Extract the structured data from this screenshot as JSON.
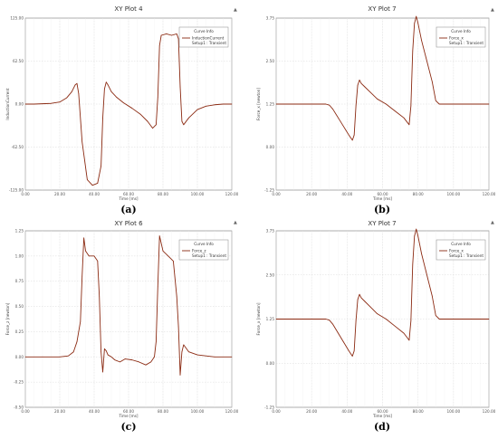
{
  "panel_labels": [
    "(a)",
    "(b)",
    "(c)",
    "(d)"
  ],
  "colors": {
    "curve": "#8b2a12",
    "grid": "#d0d0d0",
    "frame": "#777777",
    "background": "#ffffff",
    "legend_border": "#888888"
  },
  "chart_data": [
    {
      "type": "line",
      "title": "XY Plot 4",
      "xlabel": "Time [ms]",
      "ylabel": "InductionCurrent",
      "xlim": [
        0,
        120
      ],
      "ylim": [
        -125,
        125
      ],
      "xticks": [
        "0.00",
        "20.00",
        "40.00",
        "60.00",
        "80.00",
        "100.00",
        "120.00"
      ],
      "yticks": [
        "125.00",
        "62.50",
        "0.00",
        "-62.50",
        "-125.00"
      ],
      "ytick_values": [
        125,
        62.5,
        0,
        -62.5,
        -125
      ],
      "legend": {
        "title": "Curve Info",
        "entry": "InductionCurrent",
        "setup": "Setup1 : Transient"
      },
      "series": [
        {
          "name": "InductionCurrent",
          "x": [
            0,
            5,
            10,
            15,
            20,
            24,
            27,
            29,
            30,
            31,
            33,
            36,
            39,
            42,
            44,
            45,
            46,
            47,
            48,
            50,
            53,
            57,
            62,
            67,
            71,
            74,
            76,
            77,
            78,
            79,
            82,
            85,
            88,
            89,
            90,
            91,
            92,
            95,
            100,
            105,
            110,
            115,
            120
          ],
          "y": [
            0,
            0,
            0.5,
            1,
            3,
            9,
            18,
            28,
            30,
            15,
            -55,
            -110,
            -118,
            -115,
            -90,
            -20,
            22,
            32,
            28,
            18,
            10,
            2,
            -6,
            -15,
            -25,
            -35,
            -30,
            10,
            85,
            100,
            102,
            100,
            102,
            95,
            25,
            -25,
            -30,
            -20,
            -8,
            -3,
            -1,
            0,
            0
          ]
        }
      ]
    },
    {
      "type": "line",
      "title": "XY Plot 7",
      "xlabel": "Time [ms]",
      "ylabel": "Force_x [newton]",
      "xlim": [
        0,
        120
      ],
      "ylim": [
        -1.25,
        3.75
      ],
      "xticks": [
        "0.00",
        "20.00",
        "40.00",
        "60.00",
        "80.00",
        "100.00",
        "120.00"
      ],
      "yticks": [
        "3.75",
        "2.50",
        "1.25",
        "0.00",
        "-1.25"
      ],
      "ytick_values": [
        3.75,
        2.5,
        1.25,
        0,
        -1.25
      ],
      "legend": {
        "title": "Curve Info",
        "entry": "Force_x",
        "setup": "Setup1 : Transient"
      },
      "series": [
        {
          "name": "Force_x",
          "x": [
            0,
            10,
            20,
            28,
            30,
            32,
            35,
            38,
            41,
            43,
            44,
            45,
            46,
            47,
            48,
            50,
            53,
            57,
            62,
            67,
            72,
            75,
            76,
            77,
            78,
            79,
            80,
            82,
            85,
            88,
            90,
            92,
            95,
            100,
            110,
            120
          ],
          "y": [
            1.25,
            1.25,
            1.25,
            1.25,
            1.22,
            1.1,
            0.85,
            0.6,
            0.35,
            0.2,
            0.35,
            1.2,
            1.8,
            1.95,
            1.85,
            1.75,
            1.6,
            1.4,
            1.25,
            1.05,
            0.85,
            0.65,
            1.2,
            2.8,
            3.6,
            3.8,
            3.6,
            3.1,
            2.5,
            1.9,
            1.35,
            1.25,
            1.25,
            1.25,
            1.25,
            1.25
          ]
        }
      ]
    },
    {
      "type": "line",
      "title": "XY Plot 6",
      "xlabel": "Time [ms]",
      "ylabel": "Force_z [newton]",
      "xlim": [
        0,
        120
      ],
      "ylim": [
        -0.5,
        1.25
      ],
      "xticks": [
        "0.00",
        "20.00",
        "40.00",
        "60.00",
        "80.00",
        "100.00",
        "120.00"
      ],
      "yticks": [
        "1.25",
        "1.00",
        "0.75",
        "0.50",
        "0.25",
        "0.00",
        "-0.25",
        "-0.50"
      ],
      "ytick_values": [
        1.25,
        1.0,
        0.75,
        0.5,
        0.25,
        0.0,
        -0.25,
        -0.5
      ],
      "legend": {
        "title": "Curve Info",
        "entry": "Force_z",
        "setup": "Setup1 : Transient"
      },
      "series": [
        {
          "name": "Force_z",
          "x": [
            0,
            10,
            20,
            25,
            28,
            30,
            32,
            33,
            34,
            35,
            37,
            40,
            42,
            43,
            44,
            45,
            46,
            47,
            48,
            50,
            52,
            55,
            58,
            62,
            66,
            70,
            73,
            75,
            76,
            77,
            78,
            80,
            83,
            86,
            88,
            89,
            90,
            91,
            92,
            95,
            100,
            110,
            120
          ],
          "y": [
            0,
            0,
            0,
            0.01,
            0.05,
            0.15,
            0.35,
            0.8,
            1.18,
            1.05,
            1.0,
            1.0,
            0.95,
            0.6,
            0.05,
            -0.15,
            0.08,
            0.06,
            0.02,
            0.0,
            -0.03,
            -0.05,
            -0.02,
            -0.03,
            -0.05,
            -0.08,
            -0.05,
            0.0,
            0.15,
            0.7,
            1.2,
            1.05,
            1.0,
            0.95,
            0.6,
            0.3,
            -0.18,
            0.05,
            0.12,
            0.05,
            0.02,
            0,
            0
          ]
        }
      ]
    },
    {
      "type": "line",
      "title": "XY Plot 7",
      "xlabel": "Time [ms]",
      "ylabel": "Force_x [newton]",
      "xlim": [
        0,
        120
      ],
      "ylim": [
        -1.25,
        3.75
      ],
      "xticks": [
        "0.00",
        "20.00",
        "40.00",
        "60.00",
        "80.00",
        "100.00",
        "120.00"
      ],
      "yticks": [
        "3.75",
        "2.50",
        "1.25",
        "0.00",
        "-1.25"
      ],
      "ytick_values": [
        3.75,
        2.5,
        1.25,
        0,
        -1.25
      ],
      "legend": {
        "title": "Curve Info",
        "entry": "Force_x",
        "setup": "Setup1 : Transient"
      },
      "series": [
        {
          "name": "Force_x",
          "x": [
            0,
            10,
            20,
            28,
            30,
            32,
            35,
            38,
            41,
            43,
            44,
            45,
            46,
            47,
            48,
            50,
            53,
            57,
            62,
            67,
            72,
            75,
            76,
            77,
            78,
            79,
            80,
            82,
            85,
            88,
            90,
            92,
            95,
            100,
            110,
            120
          ],
          "y": [
            1.25,
            1.25,
            1.25,
            1.25,
            1.22,
            1.1,
            0.85,
            0.6,
            0.35,
            0.2,
            0.35,
            1.2,
            1.8,
            1.95,
            1.85,
            1.75,
            1.6,
            1.4,
            1.25,
            1.05,
            0.85,
            0.65,
            1.2,
            2.8,
            3.6,
            3.8,
            3.6,
            3.1,
            2.5,
            1.9,
            1.35,
            1.25,
            1.25,
            1.25,
            1.25,
            1.25
          ]
        }
      ]
    }
  ]
}
